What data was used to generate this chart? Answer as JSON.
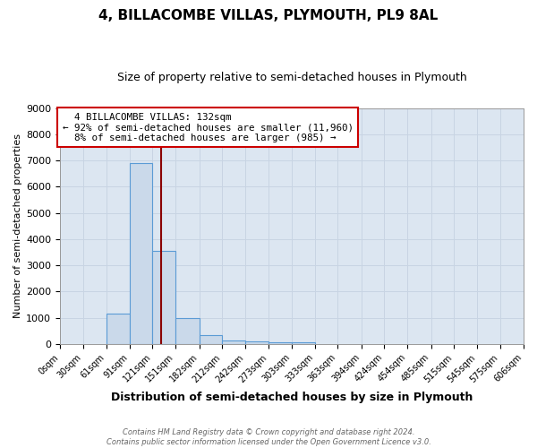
{
  "title": "4, BILLACOMBE VILLAS, PLYMOUTH, PL9 8AL",
  "subtitle": "Size of property relative to semi-detached houses in Plymouth",
  "xlabel": "Distribution of semi-detached houses by size in Plymouth",
  "ylabel": "Number of semi-detached properties",
  "property_label": "4 BILLACOMBE VILLAS: 132sqm",
  "pct_smaller": 92,
  "n_smaller": "11,960",
  "pct_larger": 8,
  "n_larger": "985",
  "bin_edges": [
    0,
    30,
    61,
    91,
    121,
    151,
    182,
    212,
    242,
    273,
    303,
    333,
    363,
    394,
    424,
    454,
    485,
    515,
    545,
    575,
    606
  ],
  "bin_labels": [
    "0sqm",
    "30sqm",
    "61sqm",
    "91sqm",
    "121sqm",
    "151sqm",
    "182sqm",
    "212sqm",
    "242sqm",
    "273sqm",
    "303sqm",
    "333sqm",
    "363sqm",
    "394sqm",
    "424sqm",
    "454sqm",
    "485sqm",
    "515sqm",
    "545sqm",
    "575sqm",
    "606sqm"
  ],
  "bar_values": [
    0,
    0,
    1150,
    6900,
    3550,
    975,
    325,
    130,
    90,
    60,
    50,
    0,
    0,
    0,
    0,
    0,
    0,
    0,
    0,
    0
  ],
  "bar_color": "#cad9ea",
  "bar_edge_color": "#5b9bd5",
  "vline_color": "#8b0000",
  "vline_x": 132,
  "ylim": [
    0,
    9000
  ],
  "yticks": [
    0,
    1000,
    2000,
    3000,
    4000,
    5000,
    6000,
    7000,
    8000,
    9000
  ],
  "annotation_box_color": "#cc0000",
  "grid_color": "#c8d4e3",
  "bg_color": "#dce6f1",
  "footer_line1": "Contains HM Land Registry data © Crown copyright and database right 2024.",
  "footer_line2": "Contains public sector information licensed under the Open Government Licence v3.0."
}
